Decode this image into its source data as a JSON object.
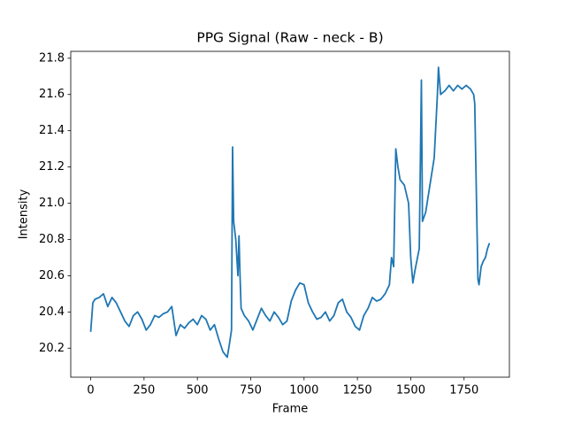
{
  "chart_data": {
    "type": "line",
    "title": "PPG Signal (Raw - neck - B)",
    "xlabel": "Frame",
    "ylabel": "Intensity",
    "color": "#1f77b4",
    "x": [
      0,
      10,
      20,
      40,
      60,
      80,
      100,
      120,
      140,
      160,
      180,
      200,
      220,
      240,
      260,
      280,
      300,
      320,
      340,
      360,
      380,
      400,
      420,
      440,
      460,
      480,
      500,
      520,
      540,
      560,
      580,
      600,
      620,
      640,
      650,
      660,
      665,
      670,
      680,
      690,
      695,
      700,
      705,
      720,
      740,
      760,
      780,
      800,
      820,
      840,
      860,
      880,
      900,
      920,
      940,
      960,
      980,
      1000,
      1020,
      1040,
      1060,
      1080,
      1100,
      1120,
      1140,
      1160,
      1180,
      1200,
      1220,
      1240,
      1260,
      1280,
      1300,
      1320,
      1340,
      1360,
      1380,
      1400,
      1410,
      1420,
      1430,
      1440,
      1450,
      1470,
      1490,
      1500,
      1510,
      1520,
      1540,
      1550,
      1555,
      1570,
      1590,
      1610,
      1625,
      1630,
      1640,
      1660,
      1680,
      1700,
      1720,
      1740,
      1760,
      1780,
      1795,
      1800,
      1810,
      1815,
      1820,
      1830,
      1840,
      1850,
      1860,
      1869
    ],
    "values": [
      20.29,
      20.45,
      20.47,
      20.48,
      20.5,
      20.43,
      20.48,
      20.45,
      20.4,
      20.35,
      20.32,
      20.38,
      20.4,
      20.36,
      20.3,
      20.33,
      20.38,
      20.37,
      20.39,
      20.4,
      20.43,
      20.27,
      20.33,
      20.31,
      20.34,
      20.36,
      20.33,
      20.38,
      20.36,
      20.3,
      20.33,
      20.25,
      20.18,
      20.15,
      20.22,
      20.3,
      21.31,
      20.9,
      20.8,
      20.6,
      20.82,
      20.6,
      20.42,
      20.38,
      20.35,
      20.3,
      20.36,
      20.42,
      20.38,
      20.35,
      20.4,
      20.37,
      20.33,
      20.35,
      20.46,
      20.52,
      20.56,
      20.55,
      20.45,
      20.4,
      20.36,
      20.37,
      20.4,
      20.35,
      20.38,
      20.45,
      20.47,
      20.4,
      20.37,
      20.32,
      20.3,
      20.38,
      20.42,
      20.48,
      20.46,
      20.47,
      20.5,
      20.55,
      20.7,
      20.65,
      21.3,
      21.2,
      21.13,
      21.1,
      21.0,
      20.7,
      20.56,
      20.63,
      20.75,
      21.68,
      20.9,
      20.95,
      21.1,
      21.25,
      21.6,
      21.75,
      21.6,
      21.62,
      21.65,
      21.62,
      21.65,
      21.63,
      21.65,
      21.63,
      21.6,
      21.55,
      20.9,
      20.58,
      20.55,
      20.65,
      20.68,
      20.7,
      20.75,
      20.78
    ],
    "xlim": [
      -93.45,
      1962.45
    ],
    "ylim": [
      20.04,
      21.838
    ],
    "xticks": [
      0,
      250,
      500,
      750,
      1000,
      1250,
      1500,
      1750
    ],
    "yticks": [
      20.2,
      20.4,
      20.6,
      20.8,
      {
        "value": 21,
        "label": "21.0"
      },
      21.2,
      21.4,
      21.6,
      21.8
    ]
  }
}
